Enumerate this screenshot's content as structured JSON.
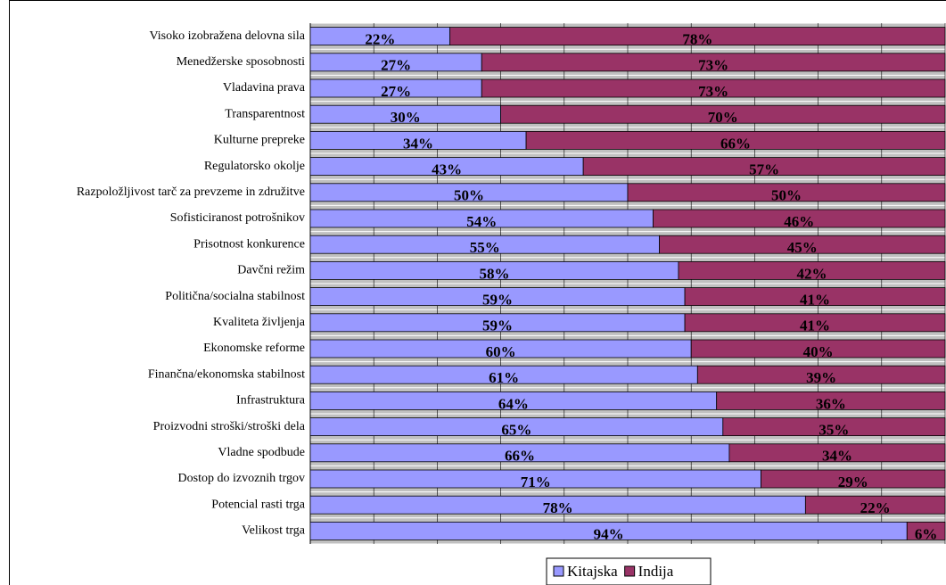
{
  "chart_data": {
    "type": "bar",
    "orientation": "horizontal",
    "stacked": true,
    "categories": [
      "Visoko izobražena delovna sila",
      "Menedžerske sposobnosti",
      "Vladavina prava",
      "Transparentnost",
      "Kulturne prepreke",
      "Regulatorsko okolje",
      "Razpoložljivost tarč za prevzeme in združitve",
      "Sofisticiranost potrošnikov",
      "Prisotnost konkurence",
      "Davčni režim",
      "Politična/socialna stabilnost",
      "Kvaliteta življenja",
      "Ekonomske reforme",
      "Finančna/ekonomska stabilnost",
      "Infrastruktura",
      "Proizvodni stroški/stroški dela",
      "Vladne spodbude",
      "Dostop do izvoznih trgov",
      "Potencial rasti trga",
      "Velikost trga"
    ],
    "series": [
      {
        "name": "Kitajska",
        "color": "#9999ff",
        "values": [
          22,
          27,
          27,
          30,
          34,
          43,
          50,
          54,
          55,
          58,
          59,
          59,
          60,
          61,
          64,
          65,
          66,
          71,
          78,
          94
        ],
        "value_labels": [
          "22%",
          "27%",
          "27%",
          "30%",
          "34%",
          "43%",
          "50%",
          "54%",
          "55%",
          "58%",
          "59%",
          "59%",
          "60%",
          "61%",
          "64%",
          "65%",
          "66%",
          "71%",
          "78%",
          "94%"
        ]
      },
      {
        "name": "Indija",
        "color": "#993366",
        "values": [
          78,
          73,
          73,
          70,
          66,
          57,
          50,
          46,
          45,
          42,
          41,
          41,
          40,
          39,
          36,
          35,
          34,
          29,
          22,
          6
        ],
        "value_labels": [
          "78%",
          "73%",
          "73%",
          "70%",
          "66%",
          "57%",
          "50%",
          "46%",
          "45%",
          "42%",
          "41%",
          "41%",
          "40%",
          "39%",
          "36%",
          "35%",
          "34%",
          "29%",
          "22%",
          "6%"
        ]
      }
    ],
    "xlim": [
      0,
      100
    ],
    "xticks": [
      0,
      10,
      20,
      30,
      40,
      50,
      60,
      70,
      80,
      90,
      100
    ],
    "grid": true,
    "legend": "bottom"
  }
}
